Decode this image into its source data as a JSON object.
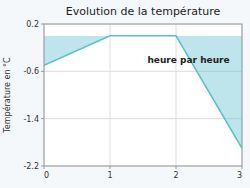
{
  "chart_data": {
    "type": "line",
    "title": "Evolution de la température",
    "xlabel": "heure par heure",
    "ylabel": "Température en °C",
    "x": [
      0,
      1,
      2,
      3
    ],
    "values": [
      -0.5,
      0.0,
      0.0,
      -1.9
    ],
    "color": "#5bbece",
    "xlim": [
      0,
      3
    ],
    "ylim": [
      -2.2,
      0.2
    ],
    "xticks": [
      0,
      1,
      2,
      3
    ],
    "yticks": [
      0.2,
      -0.6,
      -1.4,
      -2.2
    ],
    "grid": true
  }
}
